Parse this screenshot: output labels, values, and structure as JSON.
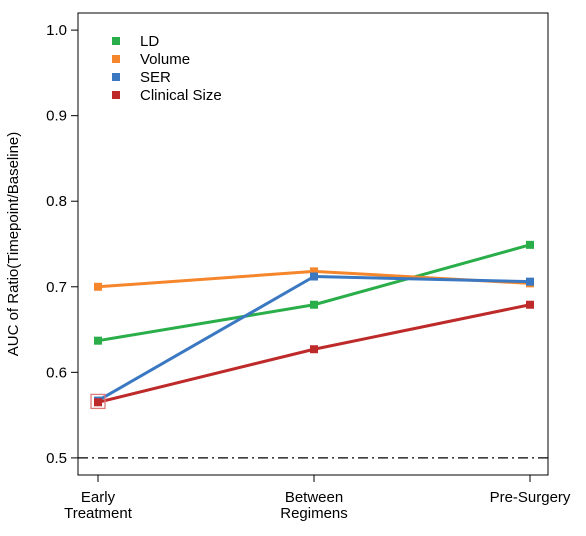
{
  "chart_data": {
    "type": "line",
    "title": "",
    "xlabel": "",
    "ylabel": "AUC of Ratio(Timepoint/Baseline)",
    "categories": [
      "Early\nTreatment",
      "Between\nRegimens",
      "Pre-Surgery"
    ],
    "ylim": [
      0.48,
      1.02
    ],
    "yticks": [
      0.5,
      0.6,
      0.7,
      0.8,
      0.9,
      1.0
    ],
    "ytick_labels": [
      "0.5",
      "0.6",
      "0.7",
      "0.8",
      "0.9",
      "1.0"
    ],
    "reference_line": {
      "value": 0.5,
      "style": "dash-dot",
      "color": "#000000"
    },
    "grid": false,
    "legend_position": "top-left",
    "series": [
      {
        "name": "LD",
        "color": "#2aae4a",
        "values": [
          0.637,
          0.679,
          0.749
        ]
      },
      {
        "name": "Volume",
        "color": "#f5862b",
        "values": [
          0.7,
          0.718,
          0.704
        ]
      },
      {
        "name": "SER",
        "color": "#3a78c2",
        "values": [
          0.567,
          0.712,
          0.706
        ]
      },
      {
        "name": "Clinical Size",
        "color": "#be2a2a",
        "values": [
          0.565,
          0.627,
          0.679
        ]
      }
    ],
    "highlight": {
      "category_index": 0,
      "color": "#e07a7a"
    }
  }
}
